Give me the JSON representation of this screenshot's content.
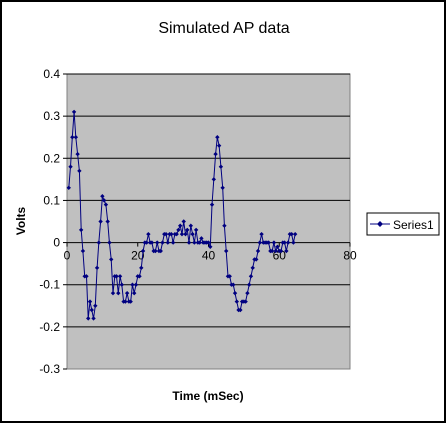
{
  "chart_data": {
    "type": "line",
    "title": "Simulated AP data",
    "xlabel": "Time (mSec)",
    "ylabel": "Volts",
    "xlim": [
      0,
      80
    ],
    "ylim": [
      -0.3,
      0.4
    ],
    "x_ticks": [
      "0",
      "20",
      "40",
      "60",
      "80"
    ],
    "y_ticks": [
      "-0.3",
      "-0.2",
      "-0.1",
      "0",
      "0.1",
      "0.2",
      "0.3",
      "0.4"
    ],
    "grid": "horizontal major gridlines",
    "legend_position": "right",
    "plot_background": "#c0c0c0",
    "series_color": "#000080",
    "series": [
      {
        "name": "Series1",
        "x": [
          0.5,
          1,
          1.5,
          2,
          2.5,
          3,
          3.5,
          4,
          4.5,
          5,
          5.5,
          6,
          6.5,
          7,
          7.5,
          8,
          8.5,
          9,
          9.5,
          10,
          10.5,
          11,
          11.5,
          12,
          12.5,
          13,
          13.5,
          14,
          14.5,
          15,
          15.5,
          16,
          16.5,
          17,
          17.5,
          18,
          18.5,
          19,
          19.5,
          20,
          20.5,
          21,
          21.5,
          22,
          22.5,
          23,
          23.5,
          24,
          24.5,
          25,
          25.5,
          26,
          26.5,
          27,
          27.5,
          28,
          28.5,
          29,
          29.5,
          30,
          30.5,
          31,
          31.5,
          32,
          32.5,
          33,
          33.5,
          34,
          34.5,
          35,
          35.5,
          36,
          36.5,
          37,
          37.5,
          38,
          38.5,
          39,
          39.5,
          40,
          40.5,
          41,
          41.5,
          42,
          42.5,
          43,
          43.5,
          44,
          44.5,
          45,
          45.5,
          46,
          46.5,
          47,
          47.5,
          48,
          48.5,
          49,
          49.5,
          50,
          50.5,
          51,
          51.5,
          52,
          52.5,
          53,
          53.5,
          54,
          54.5,
          55,
          55.5,
          56,
          56.5,
          57,
          57.5,
          58,
          58.5,
          59,
          59.5,
          60,
          60.5,
          61,
          61.5,
          62,
          62.5,
          63,
          63.5,
          64,
          64.5
        ],
        "values": [
          0.13,
          0.18,
          0.25,
          0.31,
          0.25,
          0.21,
          0.17,
          0.03,
          -0.02,
          -0.08,
          -0.08,
          -0.18,
          -0.14,
          -0.16,
          -0.18,
          -0.15,
          -0.06,
          0.0,
          0.05,
          0.11,
          0.1,
          0.09,
          0.05,
          0.0,
          -0.04,
          -0.12,
          -0.08,
          -0.08,
          -0.12,
          -0.08,
          -0.1,
          -0.14,
          -0.14,
          -0.12,
          -0.14,
          -0.14,
          -0.1,
          -0.12,
          -0.1,
          -0.08,
          -0.08,
          -0.06,
          -0.02,
          0.0,
          0.0,
          0.02,
          0.0,
          0.0,
          -0.02,
          -0.02,
          0.0,
          -0.02,
          -0.02,
          0.0,
          0.02,
          0.02,
          0.0,
          0.02,
          0.02,
          0.0,
          0.02,
          0.02,
          0.03,
          0.04,
          0.02,
          0.05,
          0.02,
          0.03,
          0.0,
          0.04,
          0.02,
          0.0,
          0.03,
          0.0,
          0.0,
          0.01,
          0.0,
          0.0,
          0.0,
          0.0,
          -0.01,
          0.09,
          0.15,
          0.21,
          0.25,
          0.23,
          0.18,
          0.13,
          0.04,
          -0.02,
          -0.08,
          -0.08,
          -0.1,
          -0.1,
          -0.12,
          -0.14,
          -0.16,
          -0.16,
          -0.14,
          -0.14,
          -0.14,
          -0.12,
          -0.1,
          -0.08,
          -0.06,
          -0.04,
          -0.04,
          -0.02,
          0.0,
          0.02,
          0.0,
          0.0,
          0.0,
          0.0,
          -0.02,
          -0.02,
          0.0,
          -0.02,
          -0.01,
          -0.02,
          -0.02,
          0.0,
          0.0,
          -0.02,
          0.0,
          0.02,
          0.02,
          0.0,
          0.02
        ]
      }
    ]
  }
}
